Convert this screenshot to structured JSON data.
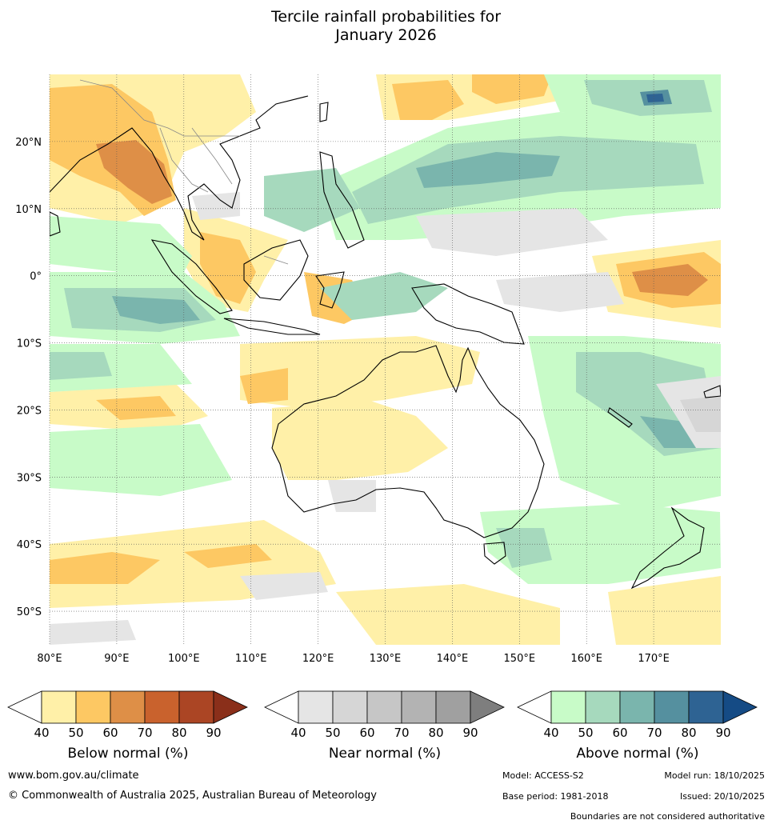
{
  "title": {
    "line1": "Tercile rainfall probabilities for",
    "line2": "January 2026"
  },
  "map": {
    "lon_ticks": [
      "80°E",
      "90°E",
      "100°E",
      "110°E",
      "120°E",
      "130°E",
      "140°E",
      "150°E",
      "160°E",
      "170°E"
    ],
    "lat_ticks": [
      "20°N",
      "10°N",
      "0°",
      "10°S",
      "20°S",
      "30°S",
      "40°S",
      "50°S"
    ],
    "lon_range": [
      80,
      180
    ],
    "lat_range": [
      -55,
      30
    ]
  },
  "legend": {
    "below": {
      "title": "Below normal (%)",
      "ticks": [
        "40",
        "50",
        "60",
        "70",
        "80",
        "90"
      ],
      "colors": [
        "#fff0a8",
        "#fdc863",
        "#de8f47",
        "#c9622d",
        "#ab4524",
        "#8a2f1a"
      ]
    },
    "near": {
      "title": "Near normal (%)",
      "ticks": [
        "40",
        "50",
        "60",
        "70",
        "80",
        "90"
      ],
      "colors": [
        "#e5e5e5",
        "#d6d6d6",
        "#c6c6c6",
        "#b3b3b3",
        "#a0a0a0",
        "#7e7e7e"
      ]
    },
    "above": {
      "title": "Above normal (%)",
      "ticks": [
        "40",
        "50",
        "60",
        "70",
        "80",
        "90"
      ],
      "colors": [
        "#c8fbc8",
        "#a6d9bd",
        "#7ab5ad",
        "#55909f",
        "#2e6393",
        "#154b85"
      ]
    }
  },
  "footer": {
    "website": "www.bom.gov.au/climate",
    "copyright": "© Commonwealth of Australia 2025, Australian Bureau of Meteorology",
    "model": "Model: ACCESS-S2",
    "model_run": "Model run: 18/10/2025",
    "base_period": "Base period: 1981-2018",
    "issued": "Issued: 20/10/2025",
    "disclaimer": "Boundaries are not considered authoritative"
  }
}
